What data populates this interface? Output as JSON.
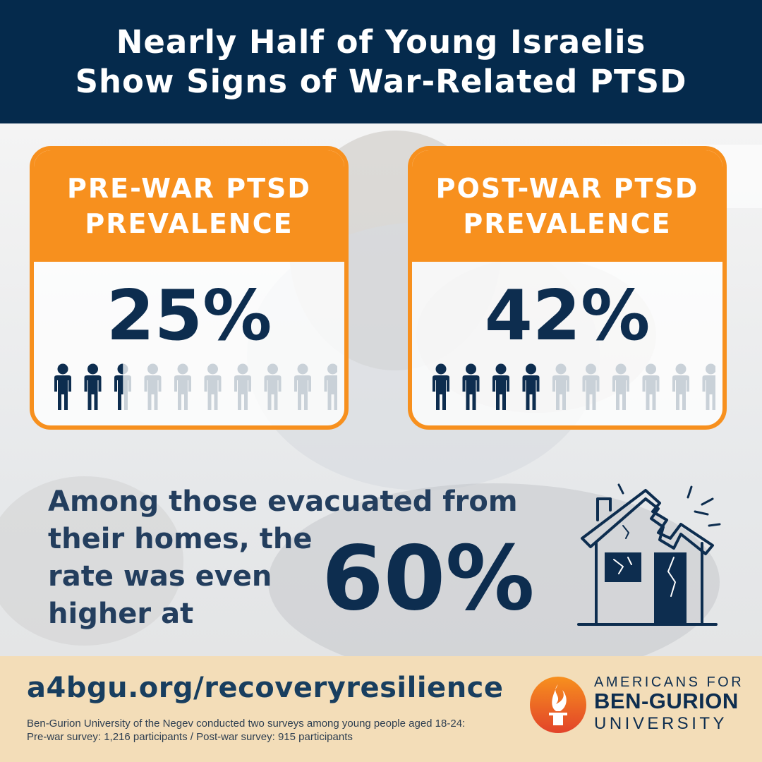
{
  "header": {
    "title_line1": "Nearly Half of Young Israelis",
    "title_line2": "Show Signs of War-Related PTSD"
  },
  "cards": [
    {
      "label_line1": "PRE-WAR PTSD",
      "label_line2": "PREVALENCE",
      "value_text": "25%",
      "value": 0.25
    },
    {
      "label_line1": "POST-WAR PTSD",
      "label_line2": "PREVALENCE",
      "value_text": "42%",
      "value": 0.42
    }
  ],
  "evacuated": {
    "line1": "Among those evacuated from",
    "line2": "their homes, the",
    "line3": "rate was even",
    "line4": "higher at",
    "value_text": "60%"
  },
  "footer": {
    "url": "a4bgu.org/recoveryresilience",
    "note_line1": "Ben-Gurion University of the Negev conducted two surveys among young people aged 18-24:",
    "note_line2": "Pre-war survey: 1,216 participants / Post-war survey: 915 participants"
  },
  "logo": {
    "line1": "AMERICANS FOR",
    "line2": "BEN-GURION",
    "line3": "UNIVERSITY"
  },
  "icons": {
    "person": "person-icon",
    "house": "damaged-house-icon",
    "logo": "flame-logo-icon"
  },
  "colors": {
    "navy": "#052a4c",
    "orange": "#f7901e",
    "dark_text": "#0d2d4f",
    "faded_person": "#c9d1d8",
    "footer_bg": "#f3ddb8"
  }
}
